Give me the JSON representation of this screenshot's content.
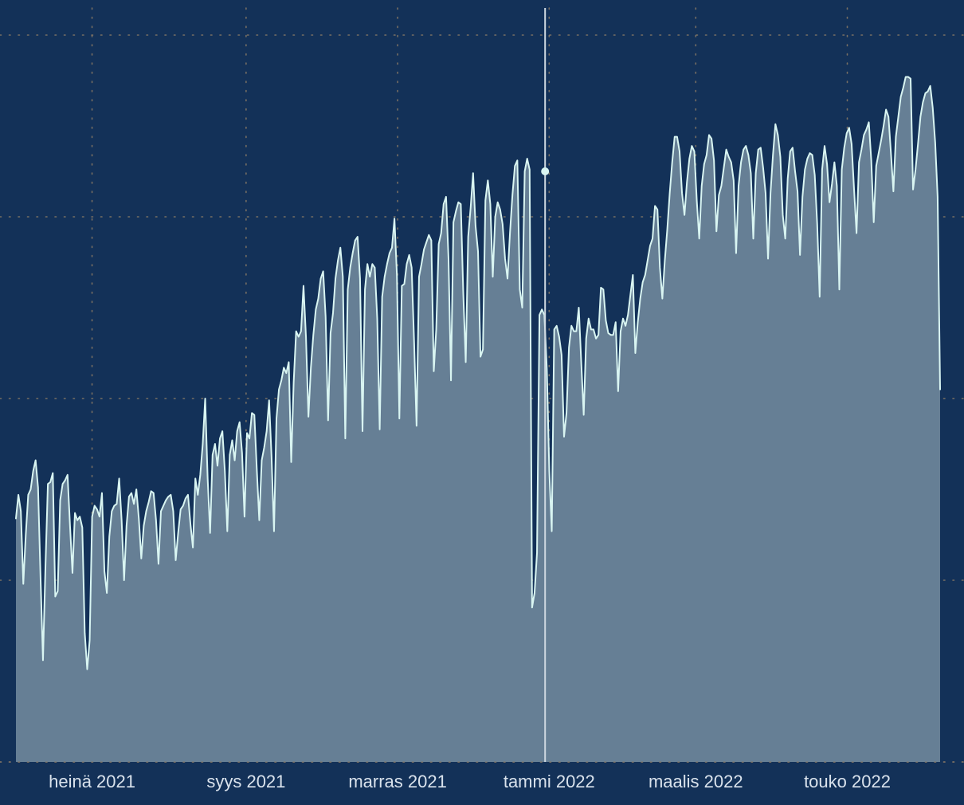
{
  "chart_data": {
    "type": "area",
    "title": "",
    "xlabel": "",
    "ylabel": "",
    "x_start": "2021-06-01",
    "x_end": "2022-06-08",
    "x_ticks": [
      {
        "date": "2021-07-01",
        "label": "heinä 2021"
      },
      {
        "date": "2021-09-01",
        "label": "syys 2021"
      },
      {
        "date": "2021-11-01",
        "label": "marras 2021"
      },
      {
        "date": "2022-01-01",
        "label": "tammi 2022"
      },
      {
        "date": "2022-03-01",
        "label": "maalis 2022"
      },
      {
        "date": "2022-05-01",
        "label": "touko 2022"
      }
    ],
    "y_grid": [
      0,
      1,
      2,
      3,
      4
    ],
    "ylim": [
      0,
      4.15
    ],
    "grid": true,
    "marker": {
      "date": "2021-12-31",
      "value": 3.25
    },
    "colors": {
      "background": "#133158",
      "fill": "#667f95",
      "line": "#d9f5f2",
      "grid": "#8a7a66",
      "marker_line": "#cfd8e0",
      "text": "#d9e2ec"
    },
    "series": [
      {
        "values": [
          1.34,
          1.47,
          1.38,
          0.98,
          1.25,
          1.47,
          1.5,
          1.6,
          1.66,
          1.51,
          1.02,
          0.56,
          1.07,
          1.53,
          1.54,
          1.59,
          0.91,
          0.94,
          1.44,
          1.53,
          1.55,
          1.58,
          1.3,
          1.04,
          1.37,
          1.33,
          1.35,
          1.29,
          0.71,
          0.51,
          0.67,
          1.35,
          1.41,
          1.39,
          1.35,
          1.48,
          1.05,
          0.93,
          1.24,
          1.38,
          1.41,
          1.42,
          1.56,
          1.33,
          1.0,
          1.3,
          1.46,
          1.48,
          1.42,
          1.5,
          1.34,
          1.12,
          1.3,
          1.38,
          1.43,
          1.49,
          1.48,
          1.33,
          1.09,
          1.38,
          1.41,
          1.44,
          1.46,
          1.47,
          1.38,
          1.11,
          1.26,
          1.39,
          1.41,
          1.45,
          1.47,
          1.31,
          1.18,
          1.56,
          1.47,
          1.58,
          1.75,
          2.0,
          1.56,
          1.26,
          1.69,
          1.75,
          1.63,
          1.78,
          1.82,
          1.6,
          1.27,
          1.69,
          1.77,
          1.66,
          1.82,
          1.87,
          1.7,
          1.35,
          1.81,
          1.78,
          1.92,
          1.91,
          1.61,
          1.33,
          1.66,
          1.73,
          1.82,
          1.99,
          1.68,
          1.27,
          1.89,
          2.05,
          2.1,
          2.17,
          2.14,
          2.2,
          1.65,
          2.09,
          2.37,
          2.34,
          2.37,
          2.62,
          2.34,
          1.9,
          2.17,
          2.35,
          2.49,
          2.55,
          2.66,
          2.7,
          2.45,
          1.88,
          2.36,
          2.47,
          2.66,
          2.76,
          2.83,
          2.67,
          1.78,
          2.6,
          2.72,
          2.8,
          2.87,
          2.89,
          2.66,
          1.82,
          2.6,
          2.74,
          2.67,
          2.74,
          2.72,
          2.44,
          1.83,
          2.56,
          2.67,
          2.74,
          2.8,
          2.83,
          2.99,
          2.68,
          1.89,
          2.62,
          2.63,
          2.74,
          2.79,
          2.72,
          2.31,
          1.85,
          2.67,
          2.74,
          2.82,
          2.86,
          2.9,
          2.87,
          2.15,
          2.38,
          2.85,
          2.91,
          3.07,
          3.11,
          2.77,
          2.1,
          2.97,
          3.03,
          3.08,
          3.07,
          2.58,
          2.2,
          2.89,
          3.05,
          3.24,
          2.95,
          2.81,
          2.23,
          2.27,
          3.09,
          3.2,
          3.07,
          2.67,
          3.0,
          3.08,
          3.04,
          2.96,
          2.77,
          2.66,
          2.91,
          3.12,
          3.28,
          3.31,
          2.6,
          2.5,
          3.25,
          3.32,
          3.26,
          0.85,
          0.93,
          1.15,
          2.46,
          2.49,
          2.46,
          2.16,
          1.6,
          1.27,
          2.38,
          2.4,
          2.34,
          2.24,
          1.79,
          1.92,
          2.28,
          2.4,
          2.37,
          2.37,
          2.5,
          2.2,
          1.91,
          2.33,
          2.44,
          2.38,
          2.38,
          2.33,
          2.35,
          2.61,
          2.6,
          2.43,
          2.36,
          2.35,
          2.35,
          2.42,
          2.04,
          2.37,
          2.44,
          2.4,
          2.46,
          2.57,
          2.68,
          2.25,
          2.42,
          2.55,
          2.64,
          2.68,
          2.76,
          2.84,
          2.88,
          3.06,
          3.04,
          2.72,
          2.55,
          2.76,
          2.93,
          3.13,
          3.3,
          3.44,
          3.44,
          3.36,
          3.13,
          3.01,
          3.19,
          3.32,
          3.39,
          3.36,
          3.09,
          2.88,
          3.17,
          3.29,
          3.34,
          3.45,
          3.43,
          3.31,
          2.92,
          3.12,
          3.17,
          3.27,
          3.37,
          3.33,
          3.3,
          3.2,
          2.8,
          3.17,
          3.3,
          3.37,
          3.39,
          3.34,
          3.24,
          2.88,
          3.24,
          3.37,
          3.38,
          3.27,
          3.13,
          2.77,
          3.13,
          3.34,
          3.51,
          3.45,
          3.33,
          3.01,
          2.88,
          3.21,
          3.36,
          3.38,
          3.25,
          3.14,
          2.79,
          3.11,
          3.26,
          3.32,
          3.35,
          3.34,
          3.23,
          2.96,
          2.56,
          3.26,
          3.39,
          3.29,
          3.08,
          3.18,
          3.3,
          3.17,
          2.6,
          3.26,
          3.38,
          3.46,
          3.49,
          3.4,
          3.15,
          2.91,
          3.3,
          3.37,
          3.45,
          3.48,
          3.52,
          3.31,
          2.97,
          3.28,
          3.35,
          3.42,
          3.5,
          3.59,
          3.55,
          3.35,
          3.14,
          3.44,
          3.55,
          3.66,
          3.71,
          3.77,
          3.77,
          3.76,
          3.15,
          3.26,
          3.4,
          3.55,
          3.63,
          3.68,
          3.69,
          3.72,
          3.6,
          3.41,
          3.11,
          2.05
        ]
      }
    ]
  }
}
